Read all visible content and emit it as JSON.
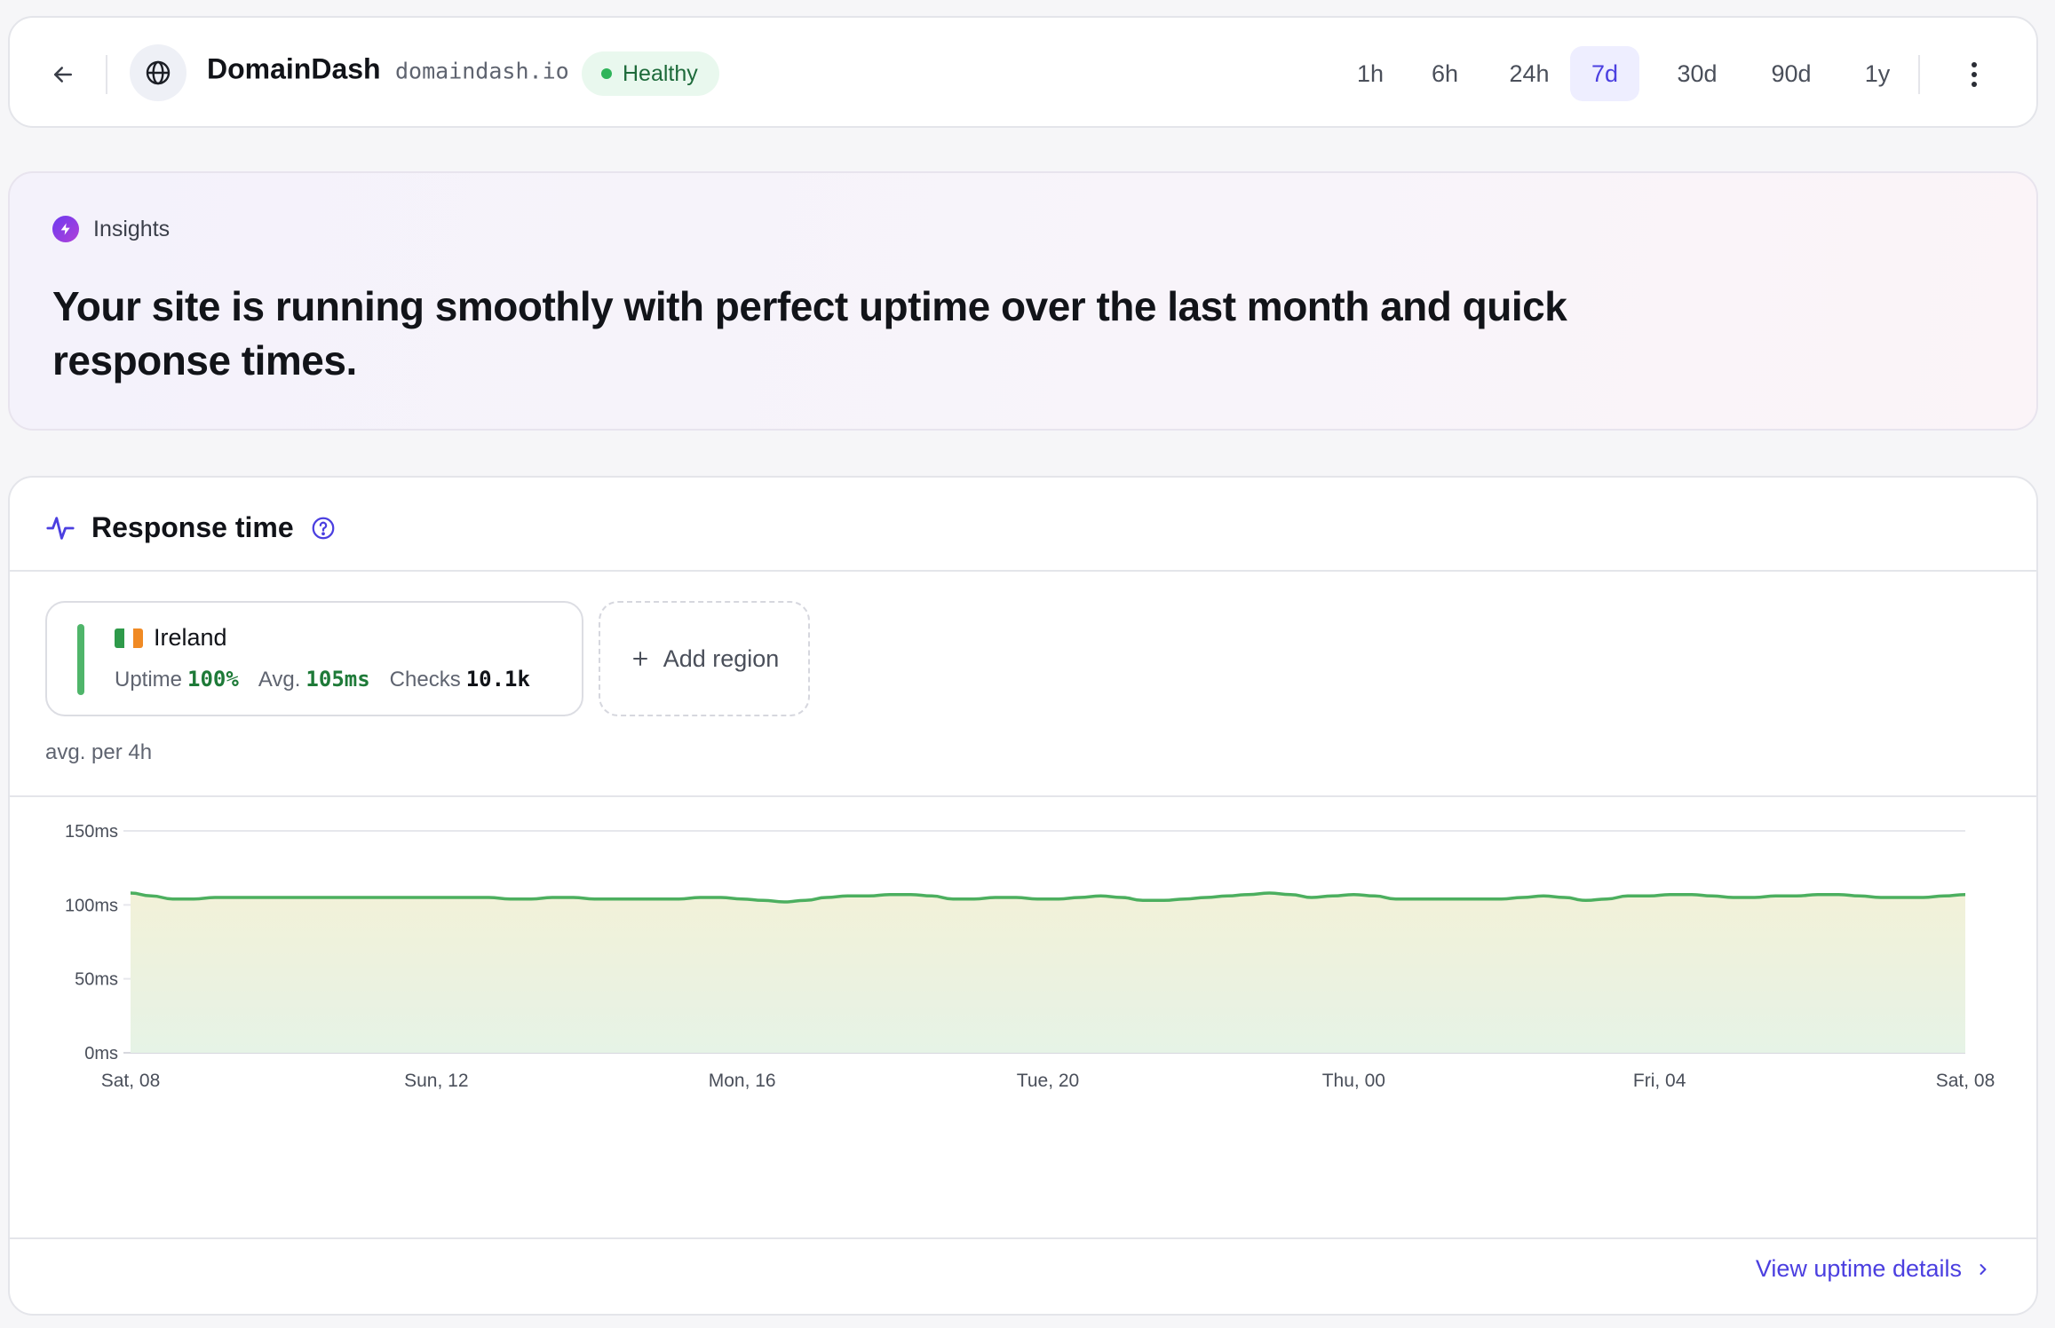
{
  "header": {
    "app_name": "DomainDash",
    "domain": "domaindash.io",
    "status": "Healthy",
    "ranges": [
      "1h",
      "6h",
      "24h",
      "7d",
      "30d",
      "90d",
      "1y"
    ],
    "active_range": "7d"
  },
  "insights": {
    "label": "Insights",
    "text": "Your site is running smoothly with perfect uptime over the last month and quick response times."
  },
  "response": {
    "title": "Response time",
    "region": {
      "name": "Ireland",
      "uptime_label": "Uptime",
      "uptime_value": "100%",
      "avg_label": "Avg.",
      "avg_value": "105ms",
      "checks_label": "Checks",
      "checks_value": "10.1k"
    },
    "add_region_label": "Add region",
    "aggregation_label": "avg. per 4h",
    "footer_link": "View uptime details"
  },
  "colors": {
    "accent": "#4b3fe0",
    "healthy": "#2fb45a",
    "line": "#4caf5f"
  },
  "chart_data": {
    "type": "area",
    "y_ticks": [
      "150ms",
      "100ms",
      "50ms",
      "0ms"
    ],
    "ylim": [
      0,
      150
    ],
    "x_tick_labels": [
      "Sat, 08",
      "Sun, 12",
      "Mon, 16",
      "Tue, 20",
      "Thu, 00",
      "Fri, 04",
      "Sat, 08"
    ],
    "grid": true,
    "series": [
      {
        "values": [
          108,
          106,
          104,
          104,
          105,
          105,
          105,
          105,
          105,
          105,
          105,
          105,
          105,
          105,
          105,
          105,
          105,
          105,
          104,
          104,
          105,
          105,
          104,
          104,
          104,
          104,
          104,
          105,
          105,
          104,
          103,
          102,
          103,
          105,
          106,
          106,
          107,
          107,
          106,
          104,
          104,
          105,
          105,
          104,
          104,
          105,
          106,
          105,
          103,
          103,
          104,
          105,
          106,
          107,
          108,
          107,
          105,
          106,
          107,
          106,
          104,
          104,
          104,
          104,
          104,
          104,
          105,
          106,
          105,
          103,
          104,
          106,
          106,
          107,
          107,
          106,
          105,
          105,
          106,
          106,
          107,
          107,
          106,
          105,
          105,
          105,
          106,
          107
        ]
      }
    ]
  }
}
